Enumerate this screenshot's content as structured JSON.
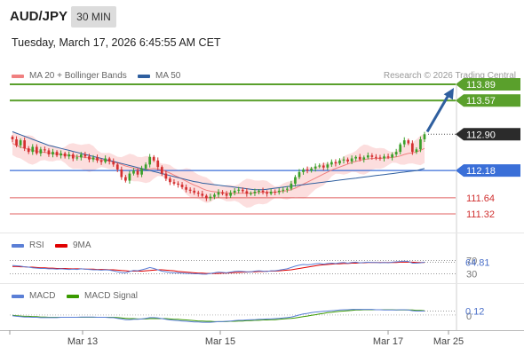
{
  "header": {
    "symbol": "AUD/JPY",
    "timeframe": "30 MIN",
    "datetime": "Tuesday, March 17, 2026 6:45:55 AM CET"
  },
  "legend": {
    "ma20": {
      "label": "MA 20 + Bollinger Bands",
      "color": "#f08080"
    },
    "ma50": {
      "label": "MA 50",
      "color": "#2f5f9f"
    },
    "credit": "Research © 2026 Trading Central"
  },
  "rsi_legend": {
    "rsi": "RSI",
    "ma9": "9MA",
    "rsi_color": "#5b7fd6",
    "ma9_color": "#e00000"
  },
  "macd_legend": {
    "macd": "MACD",
    "signal": "MACD Signal",
    "macd_color": "#5b7fd6",
    "signal_color": "#3a9a00"
  },
  "chart_data": {
    "type": "candlestick",
    "x_ticks": [
      "Mar 13",
      "Mar 15",
      "Mar 17",
      "Mar 25"
    ],
    "ylim": [
      110.95,
      114.12
    ],
    "current_price": 112.9,
    "levels": [
      {
        "value": 113.89,
        "label": "113.89",
        "kind": "resistance",
        "color": "#5aa02c"
      },
      {
        "value": 113.57,
        "label": "113.57",
        "kind": "resistance",
        "color": "#5aa02c"
      },
      {
        "value": 112.18,
        "label": "112.18",
        "kind": "pivot",
        "color": "#3a6fd8"
      },
      {
        "value": 111.64,
        "label": "111.64",
        "kind": "support",
        "color": "#e06060"
      },
      {
        "value": 111.32,
        "label": "111.32",
        "kind": "support",
        "color": "#e06060"
      }
    ],
    "price_tag": {
      "value": 112.9,
      "label": "112.90"
    },
    "arrow": {
      "from": 112.95,
      "to": 113.89,
      "color": "#2f5f9f"
    },
    "close": [
      112.8,
      112.68,
      112.78,
      112.62,
      112.55,
      112.65,
      112.52,
      112.6,
      112.58,
      112.5,
      112.55,
      112.48,
      112.52,
      112.46,
      112.5,
      112.42,
      112.44,
      112.5,
      112.46,
      112.4,
      112.44,
      112.38,
      112.35,
      112.42,
      112.36,
      112.3,
      112.2,
      112.05,
      111.98,
      112.12,
      112.18,
      112.1,
      112.22,
      112.3,
      112.45,
      112.38,
      112.25,
      112.12,
      112.02,
      111.95,
      111.92,
      111.9,
      111.85,
      111.8,
      111.78,
      111.74,
      111.72,
      111.68,
      111.63,
      111.66,
      111.7,
      111.75,
      111.72,
      111.68,
      111.74,
      111.78,
      111.8,
      111.77,
      111.72,
      111.73,
      111.76,
      111.78,
      111.75,
      111.72,
      111.76,
      111.75,
      111.78,
      111.8,
      111.82,
      111.92,
      112.05,
      112.15,
      112.2,
      112.18,
      112.22,
      112.26,
      112.28,
      112.24,
      112.3,
      112.35,
      112.32,
      112.38,
      112.4,
      112.36,
      112.42,
      112.45,
      112.4,
      112.44,
      112.48,
      112.45,
      112.44,
      112.42,
      112.46,
      112.44,
      112.5,
      112.55,
      112.7,
      112.78,
      112.72,
      112.55,
      112.6,
      112.8,
      112.9
    ],
    "ma20": [
      112.72,
      112.68,
      112.65,
      112.62,
      112.6,
      112.58,
      112.56,
      112.55,
      112.54,
      112.53,
      112.52,
      112.51,
      112.5,
      112.49,
      112.48,
      112.47,
      112.46,
      112.45,
      112.44,
      112.43,
      112.42,
      112.4,
      112.39,
      112.38,
      112.37,
      112.35,
      112.33,
      112.3,
      112.27,
      112.25,
      112.23,
      112.21,
      112.2,
      112.2,
      112.21,
      112.22,
      112.21,
      112.19,
      112.16,
      112.13,
      112.09,
      112.05,
      112.01,
      111.97,
      111.93,
      111.89,
      111.86,
      111.82,
      111.79,
      111.77,
      111.76,
      111.75,
      111.74,
      111.73,
      111.73,
      111.73,
      111.73,
      111.73,
      111.73,
      111.73,
      111.74,
      111.75,
      111.75,
      111.75,
      111.75,
      111.75,
      111.76,
      111.77,
      111.78,
      111.8,
      111.83,
      111.87,
      111.91,
      111.95,
      111.99,
      112.03,
      112.07,
      112.11,
      112.15,
      112.19,
      112.22,
      112.25,
      112.28,
      112.31,
      112.34,
      112.36,
      112.38,
      112.4,
      112.41,
      112.42,
      112.42,
      112.42,
      112.43,
      112.43,
      112.44,
      112.45,
      112.47,
      112.5,
      112.52,
      112.53,
      112.55,
      112.58,
      112.62
    ],
    "ma50": [
      112.95,
      112.92,
      112.89,
      112.86,
      112.83,
      112.8,
      112.77,
      112.74,
      112.71,
      112.68,
      112.66,
      112.64,
      112.62,
      112.6,
      112.58,
      112.56,
      112.54,
      112.52,
      112.5,
      112.48,
      112.46,
      112.44,
      112.42,
      112.4,
      112.38,
      112.36,
      112.34,
      112.32,
      112.3,
      112.28,
      112.26,
      112.24,
      112.22,
      112.2,
      112.18,
      112.16,
      112.14,
      112.12,
      112.1,
      112.08,
      112.06,
      112.04,
      112.02,
      112.0,
      111.98,
      111.96,
      111.95,
      111.93,
      111.92,
      111.91,
      111.9,
      111.89,
      111.88,
      111.87,
      111.86,
      111.85,
      111.84,
      111.83,
      111.82,
      111.81,
      111.8,
      111.8,
      111.8,
      111.81,
      111.82,
      111.83,
      111.84,
      111.85,
      111.86,
      111.87,
      111.88,
      111.89,
      111.9,
      111.91,
      111.92,
      111.93,
      111.94,
      111.95,
      111.96,
      111.97,
      111.98,
      111.99,
      112.0,
      112.01,
      112.02,
      112.03,
      112.04,
      112.05,
      112.06,
      112.07,
      112.08,
      112.09,
      112.1,
      112.11,
      112.12,
      112.13,
      112.14,
      112.15,
      112.16,
      112.17,
      112.18,
      112.2,
      112.22
    ],
    "bb_width": 0.2,
    "rsi": {
      "value": 64.81,
      "label": "64.81",
      "levels": [
        70,
        30
      ],
      "level_labels": [
        "70",
        "30"
      ],
      "ylim": [
        10,
        90
      ],
      "values": [
        55,
        54,
        53,
        51,
        50,
        48,
        47,
        46,
        46,
        45,
        45,
        44,
        45,
        44,
        43,
        44,
        43,
        45,
        44,
        43,
        42,
        42,
        41,
        42,
        41,
        39,
        36,
        34,
        33,
        37,
        40,
        39,
        42,
        45,
        49,
        46,
        42,
        38,
        36,
        34,
        33,
        33,
        32,
        31,
        31,
        30,
        30,
        29,
        29,
        31,
        33,
        35,
        34,
        33,
        35,
        37,
        38,
        37,
        36,
        36,
        38,
        39,
        38,
        37,
        39,
        39,
        41,
        43,
        45,
        49,
        53,
        56,
        58,
        57,
        58,
        60,
        61,
        59,
        61,
        62,
        61,
        63,
        64,
        62,
        64,
        65,
        63,
        64,
        65,
        64,
        64,
        63,
        64,
        63,
        65,
        66,
        67,
        68,
        67,
        62,
        62,
        63,
        64.81
      ],
      "ma9": [
        52,
        52,
        51,
        51,
        50,
        50,
        49,
        48,
        48,
        47,
        47,
        46,
        46,
        46,
        45,
        45,
        45,
        45,
        44,
        44,
        44,
        43,
        43,
        43,
        42,
        42,
        41,
        40,
        39,
        38,
        38,
        38,
        38,
        39,
        40,
        41,
        42,
        42,
        41,
        40,
        39,
        37,
        36,
        35,
        34,
        33,
        32,
        32,
        31,
        31,
        31,
        31,
        32,
        32,
        33,
        34,
        34,
        35,
        35,
        36,
        36,
        37,
        37,
        38,
        38,
        38,
        39,
        40,
        41,
        42,
        44,
        46,
        48,
        50,
        52,
        54,
        56,
        57,
        58,
        59,
        60,
        60,
        61,
        61,
        62,
        62,
        63,
        63,
        64,
        64,
        64,
        64,
        64,
        64,
        64,
        64,
        65,
        65,
        65,
        65,
        64,
        64,
        64
      ]
    },
    "macd": {
      "value": 0.12,
      "label": "0.12",
      "zero_label": "0",
      "ylim": [
        -0.35,
        0.4
      ],
      "macd": [
        -0.02,
        -0.04,
        -0.05,
        -0.06,
        -0.06,
        -0.07,
        -0.07,
        -0.08,
        -0.08,
        -0.08,
        -0.08,
        -0.08,
        -0.07,
        -0.07,
        -0.07,
        -0.07,
        -0.07,
        -0.06,
        -0.06,
        -0.06,
        -0.06,
        -0.07,
        -0.07,
        -0.07,
        -0.08,
        -0.08,
        -0.1,
        -0.12,
        -0.14,
        -0.14,
        -0.13,
        -0.13,
        -0.12,
        -0.1,
        -0.08,
        -0.08,
        -0.09,
        -0.11,
        -0.13,
        -0.15,
        -0.16,
        -0.17,
        -0.18,
        -0.19,
        -0.2,
        -0.21,
        -0.21,
        -0.22,
        -0.22,
        -0.22,
        -0.21,
        -0.2,
        -0.2,
        -0.19,
        -0.18,
        -0.17,
        -0.16,
        -0.16,
        -0.15,
        -0.14,
        -0.14,
        -0.13,
        -0.13,
        -0.12,
        -0.12,
        -0.11,
        -0.1,
        -0.09,
        -0.08,
        -0.06,
        -0.03,
        0.0,
        0.03,
        0.05,
        0.07,
        0.09,
        0.1,
        0.11,
        0.12,
        0.13,
        0.14,
        0.15,
        0.16,
        0.16,
        0.17,
        0.17,
        0.17,
        0.17,
        0.17,
        0.17,
        0.16,
        0.16,
        0.15,
        0.15,
        0.15,
        0.15,
        0.16,
        0.16,
        0.15,
        0.13,
        0.12,
        0.12,
        0.12
      ],
      "signal": [
        -0.01,
        -0.02,
        -0.03,
        -0.04,
        -0.04,
        -0.05,
        -0.05,
        -0.06,
        -0.06,
        -0.07,
        -0.07,
        -0.07,
        -0.07,
        -0.07,
        -0.07,
        -0.07,
        -0.07,
        -0.07,
        -0.07,
        -0.07,
        -0.07,
        -0.07,
        -0.07,
        -0.07,
        -0.07,
        -0.07,
        -0.08,
        -0.09,
        -0.1,
        -0.11,
        -0.11,
        -0.12,
        -0.12,
        -0.12,
        -0.11,
        -0.11,
        -0.11,
        -0.11,
        -0.11,
        -0.12,
        -0.13,
        -0.13,
        -0.14,
        -0.15,
        -0.16,
        -0.17,
        -0.18,
        -0.18,
        -0.19,
        -0.19,
        -0.2,
        -0.2,
        -0.2,
        -0.2,
        -0.19,
        -0.19,
        -0.18,
        -0.18,
        -0.17,
        -0.17,
        -0.16,
        -0.16,
        -0.15,
        -0.15,
        -0.14,
        -0.14,
        -0.13,
        -0.12,
        -0.11,
        -0.1,
        -0.09,
        -0.07,
        -0.05,
        -0.03,
        -0.01,
        0.01,
        0.03,
        0.05,
        0.07,
        0.08,
        0.1,
        0.11,
        0.12,
        0.13,
        0.14,
        0.15,
        0.15,
        0.16,
        0.16,
        0.16,
        0.16,
        0.16,
        0.16,
        0.16,
        0.16,
        0.15,
        0.15,
        0.15,
        0.15,
        0.15,
        0.14,
        0.14,
        0.13
      ]
    }
  }
}
